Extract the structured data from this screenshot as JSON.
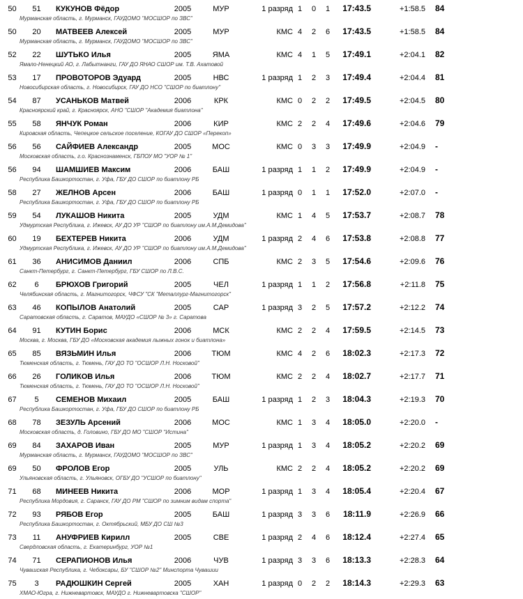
{
  "page": {
    "background_color": "#ffffff",
    "text_color": "#000000"
  },
  "results_table": {
    "columns": [
      "rank",
      "bib",
      "name",
      "year",
      "region",
      "qualification",
      "penalty1",
      "penalty2",
      "penalty3",
      "time",
      "gap",
      "points",
      "team"
    ],
    "rows": [
      {
        "rank": "50",
        "bib": "51",
        "name": "КУКУНОВ Фёдор",
        "year": "2005",
        "region": "МУР",
        "qual": "1 разряд",
        "p1": "1",
        "p2": "0",
        "p3": "1",
        "time": "17:43.5",
        "gap": "+1:58.5",
        "points": "84",
        "team": "Мурманская область,  г. Мурманск, ГАУДОМО \"МОСШОР по ЗВС\""
      },
      {
        "rank": "50",
        "bib": "20",
        "name": "МАТВЕЕВ Алексей",
        "year": "2005",
        "region": "МУР",
        "qual": "КМС",
        "p1": "4",
        "p2": "2",
        "p3": "6",
        "time": "17:43.5",
        "gap": "+1:58.5",
        "points": "84",
        "team": "Мурманская область,  г. Мурманск, ГАУДОМО \"МОСШОР по ЗВС\""
      },
      {
        "rank": "52",
        "bib": "22",
        "name": "ШУТЬКО Илья",
        "year": "2005",
        "region": "ЯМА",
        "qual": "КМС",
        "p1": "4",
        "p2": "1",
        "p3": "5",
        "time": "17:49.1",
        "gap": "+2:04.1",
        "points": "82",
        "team": "Ямало-Ненецкий АО,  г. Лабытнанги, ГАУ ДО ЯНАО СШОР им. Т.В. Ахатовой"
      },
      {
        "rank": "53",
        "bib": "17",
        "name": "ПРОВОТОРОВ Эдуард",
        "year": "2005",
        "region": "НВС",
        "qual": "1 разряд",
        "p1": "1",
        "p2": "2",
        "p3": "3",
        "time": "17:49.4",
        "gap": "+2:04.4",
        "points": "81",
        "team": "Новосибирская область,  г. Новосибирск, ГАУ ДО НСО \"СШОР по биатлону\""
      },
      {
        "rank": "54",
        "bib": "87",
        "name": "УСАНЬКОВ Матвей",
        "year": "2006",
        "region": "КРК",
        "qual": "КМС",
        "p1": "0",
        "p2": "2",
        "p3": "2",
        "time": "17:49.5",
        "gap": "+2:04.5",
        "points": "80",
        "team": "Красноярский край,  г. Красноярск, АНО \"СШОР \"Академия биатлона\""
      },
      {
        "rank": "55",
        "bib": "58",
        "name": "ЯНЧУК Роман",
        "year": "2006",
        "region": "КИР",
        "qual": "КМС",
        "p1": "2",
        "p2": "2",
        "p3": "4",
        "time": "17:49.6",
        "gap": "+2:04.6",
        "points": "79",
        "team": "Кировская область,  Чепецкое сельское поселение, КОГАУ ДО СШОР «Перекоп»"
      },
      {
        "rank": "56",
        "bib": "56",
        "name": "САЙФИЕВ Александр",
        "year": "2005",
        "region": "МОС",
        "qual": "КМС",
        "p1": "0",
        "p2": "3",
        "p3": "3",
        "time": "17:49.9",
        "gap": "+2:04.9",
        "points": "-",
        "team": "Московская область,  г.о. Краснознаменск, ГБПОУ МО \"УОР № 1\""
      },
      {
        "rank": "56",
        "bib": "94",
        "name": "ШАМШИЕВ Максим",
        "year": "2006",
        "region": "БАШ",
        "qual": "1 разряд",
        "p1": "1",
        "p2": "1",
        "p3": "2",
        "time": "17:49.9",
        "gap": "+2:04.9",
        "points": "-",
        "team": "Республика Башкортостан,  г. Уфа, ГБУ ДО СШОР по биатлону РБ"
      },
      {
        "rank": "58",
        "bib": "27",
        "name": "ЖЕЛНОВ Арсен",
        "year": "2006",
        "region": "БАШ",
        "qual": "1 разряд",
        "p1": "0",
        "p2": "1",
        "p3": "1",
        "time": "17:52.0",
        "gap": "+2:07.0",
        "points": "-",
        "team": "Республика Башкортостан,  г. Уфа, ГБУ ДО СШОР по биатлону РБ"
      },
      {
        "rank": "59",
        "bib": "54",
        "name": "ЛУКАШОВ Никита",
        "year": "2005",
        "region": "УДМ",
        "qual": "КМС",
        "p1": "1",
        "p2": "4",
        "p3": "5",
        "time": "17:53.7",
        "gap": "+2:08.7",
        "points": "78",
        "team": "Удмуртская Республика,  г. Ижевск, АУ ДО УР \"СШОР по биатлону им.А.М.Демидова\""
      },
      {
        "rank": "60",
        "bib": "19",
        "name": "БЕХТЕРЕВ Никита",
        "year": "2006",
        "region": "УДМ",
        "qual": "1 разряд",
        "p1": "2",
        "p2": "4",
        "p3": "6",
        "time": "17:53.8",
        "gap": "+2:08.8",
        "points": "77",
        "team": "Удмуртская Республика,  г. Ижевск, АУ ДО УР \"СШОР по биатлону им.А.М.Демидова\""
      },
      {
        "rank": "61",
        "bib": "36",
        "name": "АНИСИМОВ Даниил",
        "year": "2006",
        "region": "СПБ",
        "qual": "КМС",
        "p1": "2",
        "p2": "3",
        "p3": "5",
        "time": "17:54.6",
        "gap": "+2:09.6",
        "points": "76",
        "team": "Санкт-Петербург,  г. Санкт-Петербург, ГБУ СШОР по Л.В.С."
      },
      {
        "rank": "62",
        "bib": "6",
        "name": "БРЮХОВ Григорий",
        "year": "2005",
        "region": "ЧЕЛ",
        "qual": "1 разряд",
        "p1": "1",
        "p2": "1",
        "p3": "2",
        "time": "17:56.8",
        "gap": "+2:11.8",
        "points": "75",
        "team": "Челябинская область,  г. Магнитогорск, ЧФСУ \"СК \"Металлург-Магнитогорск\""
      },
      {
        "rank": "63",
        "bib": "46",
        "name": "КОПЫЛОВ Анатолий",
        "year": "2005",
        "region": "САР",
        "qual": "1 разряд",
        "p1": "3",
        "p2": "2",
        "p3": "5",
        "time": "17:57.2",
        "gap": "+2:12.2",
        "points": "74",
        "team": "Саратовская область,  г. Саратов, МАУДО «СШОР № 3» г. Саратова"
      },
      {
        "rank": "64",
        "bib": "91",
        "name": "КУТИН Борис",
        "year": "2006",
        "region": "МСК",
        "qual": "КМС",
        "p1": "2",
        "p2": "2",
        "p3": "4",
        "time": "17:59.5",
        "gap": "+2:14.5",
        "points": "73",
        "team": "Москва,  г. Москва, ГБУ ДО «Московская академия лыжных гонок и биатлона»"
      },
      {
        "rank": "65",
        "bib": "85",
        "name": "ВЯЗЬМИН Илья",
        "year": "2006",
        "region": "ТЮМ",
        "qual": "КМС",
        "p1": "4",
        "p2": "2",
        "p3": "6",
        "time": "18:02.3",
        "gap": "+2:17.3",
        "points": "72",
        "team": "Тюменская область,  г. Тюмень, ГАУ ДО ТО \"ОСШОР Л.Н. Носковой\""
      },
      {
        "rank": "66",
        "bib": "26",
        "name": "ГОЛИКОВ Илья",
        "year": "2006",
        "region": "ТЮМ",
        "qual": "КМС",
        "p1": "2",
        "p2": "2",
        "p3": "4",
        "time": "18:02.7",
        "gap": "+2:17.7",
        "points": "71",
        "team": "Тюменская область,  г. Тюмень, ГАУ ДО ТО \"ОСШОР Л.Н. Носковой\""
      },
      {
        "rank": "67",
        "bib": "5",
        "name": "СЕМЕНОВ Михаил",
        "year": "2005",
        "region": "БАШ",
        "qual": "1 разряд",
        "p1": "1",
        "p2": "2",
        "p3": "3",
        "time": "18:04.3",
        "gap": "+2:19.3",
        "points": "70",
        "team": "Республика Башкортостан,  г. Уфа, ГБУ ДО СШОР по биатлону РБ"
      },
      {
        "rank": "68",
        "bib": "78",
        "name": "ЗЕЗУЛЬ Арсений",
        "year": "2006",
        "region": "МОС",
        "qual": "КМС",
        "p1": "1",
        "p2": "3",
        "p3": "4",
        "time": "18:05.0",
        "gap": "+2:20.0",
        "points": "-",
        "team": "Московская область,  д. Головино, ГБУ ДО МО \"СШОР \"Истина\""
      },
      {
        "rank": "69",
        "bib": "84",
        "name": "ЗАХАРОВ Иван",
        "year": "2005",
        "region": "МУР",
        "qual": "1 разряд",
        "p1": "1",
        "p2": "3",
        "p3": "4",
        "time": "18:05.2",
        "gap": "+2:20.2",
        "points": "69",
        "team": "Мурманская область,  г. Мурманск, ГАУДОМО \"МОСШОР по ЗВС\""
      },
      {
        "rank": "69",
        "bib": "50",
        "name": "ФРОЛОВ Егор",
        "year": "2005",
        "region": "УЛЬ",
        "qual": "КМС",
        "p1": "2",
        "p2": "2",
        "p3": "4",
        "time": "18:05.2",
        "gap": "+2:20.2",
        "points": "69",
        "team": "Ульяновская область,  г. Ульяновск, ОГБУ ДО \"УСШОР по биатлону\""
      },
      {
        "rank": "71",
        "bib": "68",
        "name": "МИНЕЕВ Никита",
        "year": "2006",
        "region": "МОР",
        "qual": "1 разряд",
        "p1": "1",
        "p2": "3",
        "p3": "4",
        "time": "18:05.4",
        "gap": "+2:20.4",
        "points": "67",
        "team": "Республика Мордовия,  г. Саранск, ГАУ ДО РМ \"СШОР по зимним видам спорта\""
      },
      {
        "rank": "72",
        "bib": "93",
        "name": "РЯБОВ Егор",
        "year": "2005",
        "region": "БАШ",
        "qual": "1 разряд",
        "p1": "3",
        "p2": "3",
        "p3": "6",
        "time": "18:11.9",
        "gap": "+2:26.9",
        "points": "66",
        "team": "Республика Башкортостан,  г. Октябрьский, МБУ ДО СШ №3"
      },
      {
        "rank": "73",
        "bib": "11",
        "name": "АНУФРИЕВ Кирилл",
        "year": "2005",
        "region": "СВЕ",
        "qual": "1 разряд",
        "p1": "2",
        "p2": "4",
        "p3": "6",
        "time": "18:12.4",
        "gap": "+2:27.4",
        "points": "65",
        "team": "Свердловская область,  г. Екатеринбург, УОР №1"
      },
      {
        "rank": "74",
        "bib": "71",
        "name": "СЕРАПИОНОВ Илья",
        "year": "2006",
        "region": "ЧУВ",
        "qual": "1 разряд",
        "p1": "3",
        "p2": "3",
        "p3": "6",
        "time": "18:13.3",
        "gap": "+2:28.3",
        "points": "64",
        "team": "Чувашская Республика,  г. Чебоксары, БУ \"СШОР №2\" Минспорта Чувашии"
      },
      {
        "rank": "75",
        "bib": "3",
        "name": "РАДЮШКИН Сергей",
        "year": "2005",
        "region": "ХАН",
        "qual": "1 разряд",
        "p1": "0",
        "p2": "2",
        "p3": "2",
        "time": "18:14.3",
        "gap": "+2:29.3",
        "points": "63",
        "team": "ХМАО-Югра,  г. Нижневартовск, МАУДО г. Нижневартовска \"СШОР\""
      }
    ]
  }
}
